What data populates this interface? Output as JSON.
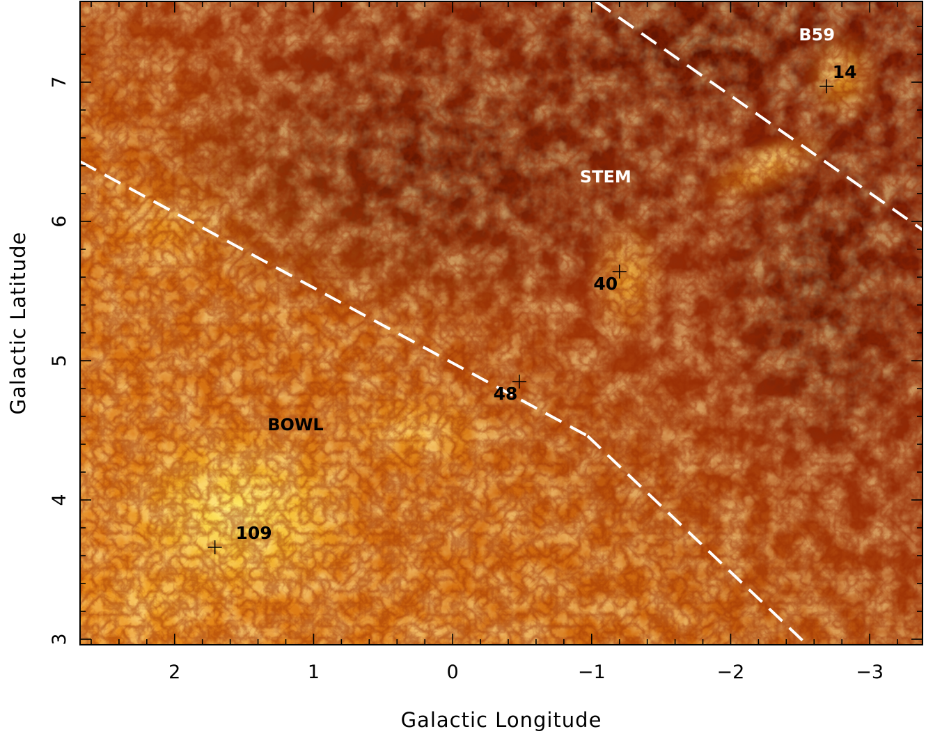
{
  "chart_data": {
    "type": "heatmap",
    "xlabel": "Galactic Longitude",
    "ylabel": "Galactic Latitude",
    "xlim": [
      2.68,
      -3.38
    ],
    "ylim": [
      2.96,
      7.58
    ],
    "x_reversed": true,
    "x_ticks": [
      2,
      1,
      0,
      -1,
      -2,
      -3
    ],
    "x_tick_labels": [
      "2",
      "1",
      "0",
      "−1",
      "−2",
      "−3"
    ],
    "y_ticks": [
      3,
      4,
      5,
      6,
      7
    ],
    "y_tick_labels": [
      "3",
      "4",
      "5",
      "6",
      "7"
    ],
    "colormap": [
      "#3a0200",
      "#6e1500",
      "#a83e05",
      "#db7a10",
      "#f6b52a",
      "#fff06a"
    ],
    "dashed_lines": [
      {
        "from": [
          2.68,
          6.43
        ],
        "to": [
          -0.97,
          4.46
        ]
      },
      {
        "from": [
          -1.03,
          7.58
        ],
        "to": [
          -3.38,
          5.94
        ]
      },
      {
        "from": [
          -0.97,
          4.46
        ],
        "to": [
          -2.55,
          2.96
        ]
      }
    ],
    "regions": [
      {
        "label": "B59",
        "l": -2.62,
        "b": 7.3,
        "color": "#ffffff"
      },
      {
        "label": "STEM",
        "l": -1.1,
        "b": 6.28,
        "color": "#ffffff"
      },
      {
        "label": "BOWL",
        "l": 1.13,
        "b": 4.5,
        "color": "#000000"
      }
    ],
    "sources": [
      {
        "id": "14",
        "l": -2.69,
        "b": 6.97,
        "label_l": -2.82,
        "label_b": 7.03
      },
      {
        "id": "40",
        "l": -1.2,
        "b": 5.64,
        "label_l": -1.1,
        "label_b": 5.51
      },
      {
        "id": "48",
        "l": -0.48,
        "b": 4.85,
        "label_l": -0.38,
        "label_b": 4.72
      },
      {
        "id": "109",
        "l": 1.71,
        "b": 3.66,
        "label_l": 1.43,
        "label_b": 3.72
      }
    ]
  }
}
